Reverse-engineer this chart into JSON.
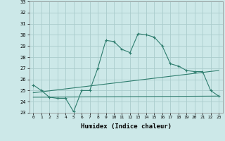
{
  "xlabel": "Humidex (Indice chaleur)",
  "x": [
    0,
    1,
    2,
    3,
    4,
    5,
    6,
    7,
    8,
    9,
    10,
    11,
    12,
    13,
    14,
    15,
    16,
    17,
    18,
    19,
    20,
    21,
    22,
    23
  ],
  "line1": [
    25.5,
    25.0,
    24.4,
    24.3,
    24.3,
    23.1,
    25.0,
    25.0,
    27.0,
    29.5,
    29.4,
    28.7,
    28.4,
    30.1,
    30.0,
    29.8,
    29.0,
    27.4,
    27.2,
    26.8,
    26.7,
    26.7,
    25.0,
    24.5
  ],
  "line2_x": [
    0,
    23
  ],
  "line2_y": [
    24.4,
    24.5
  ],
  "line3_x": [
    0,
    23
  ],
  "line3_y": [
    24.8,
    26.8
  ],
  "ylim": [
    23,
    33
  ],
  "yticks": [
    23,
    24,
    25,
    26,
    27,
    28,
    29,
    30,
    31,
    32,
    33
  ],
  "xticks": [
    0,
    1,
    2,
    3,
    4,
    5,
    6,
    7,
    8,
    9,
    10,
    11,
    12,
    13,
    14,
    15,
    16,
    17,
    18,
    19,
    20,
    21,
    22,
    23
  ],
  "line_color": "#2e7d6e",
  "bg_color": "#cce8e8",
  "grid_color": "#aacccc"
}
